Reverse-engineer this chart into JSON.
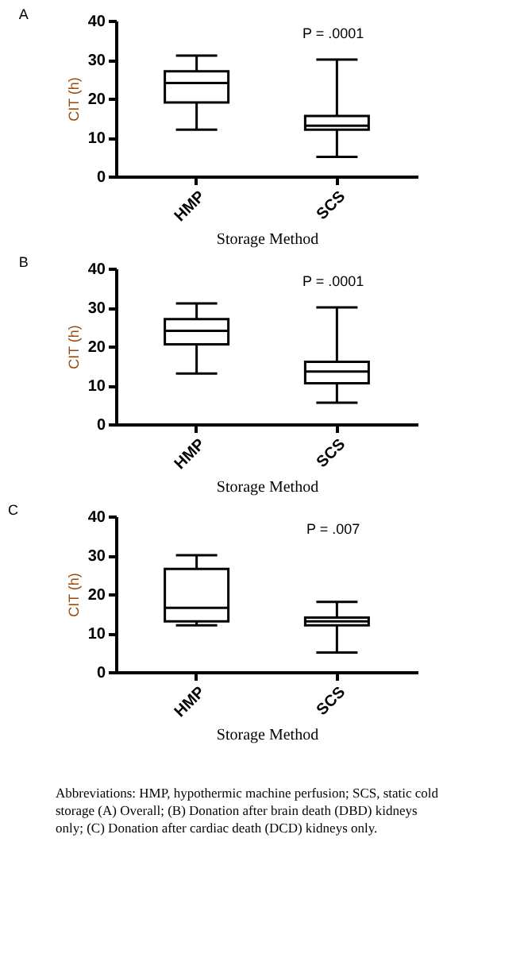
{
  "chart_data": [
    {
      "type": "box",
      "title": "A",
      "xlabel": "Storage Method",
      "ylabel": "CIT (h)",
      "categories": [
        "HMP",
        "SCS"
      ],
      "ylim": [
        0,
        40
      ],
      "yticks": [
        0,
        10,
        20,
        30,
        40
      ],
      "grid": false,
      "annotations": [
        "P = .0001"
      ],
      "boxes": [
        {
          "low": 12,
          "q1": 19,
          "median": 24,
          "q3": 27,
          "high": 31
        },
        {
          "low": 5,
          "q1": 12,
          "median": 13,
          "q3": 15.5,
          "high": 30
        }
      ]
    },
    {
      "type": "box",
      "title": "B",
      "xlabel": "Storage Method",
      "ylabel": "CIT (h)",
      "categories": [
        "HMP",
        "SCS"
      ],
      "ylim": [
        0,
        40
      ],
      "yticks": [
        0,
        10,
        20,
        30,
        40
      ],
      "grid": false,
      "annotations": [
        "P = .0001"
      ],
      "boxes": [
        {
          "low": 13,
          "q1": 20.5,
          "median": 24,
          "q3": 27,
          "high": 31
        },
        {
          "low": 5.5,
          "q1": 10.5,
          "median": 13.5,
          "q3": 16,
          "high": 30
        }
      ]
    },
    {
      "type": "box",
      "title": "C",
      "xlabel": "Storage Method",
      "ylabel": "CIT (h)",
      "categories": [
        "HMP",
        "SCS"
      ],
      "ylim": [
        0,
        40
      ],
      "yticks": [
        0,
        10,
        20,
        30,
        40
      ],
      "grid": false,
      "annotations": [
        "P = .007",
        "Abbreviations: HMP, hypothermic machine perfusion; SCS, static cold storage (A) Overall; (B) Donation after brain death (DBD) kidneys only; (C) Donation after cardiac death (DCD) kidneys only."
      ],
      "boxes": [
        {
          "low": 12,
          "q1": 13,
          "median": 16.5,
          "q3": 26.5,
          "high": 30
        },
        {
          "low": 5,
          "q1": 12,
          "median": 13,
          "q3": 14,
          "high": 18
        }
      ]
    }
  ]
}
